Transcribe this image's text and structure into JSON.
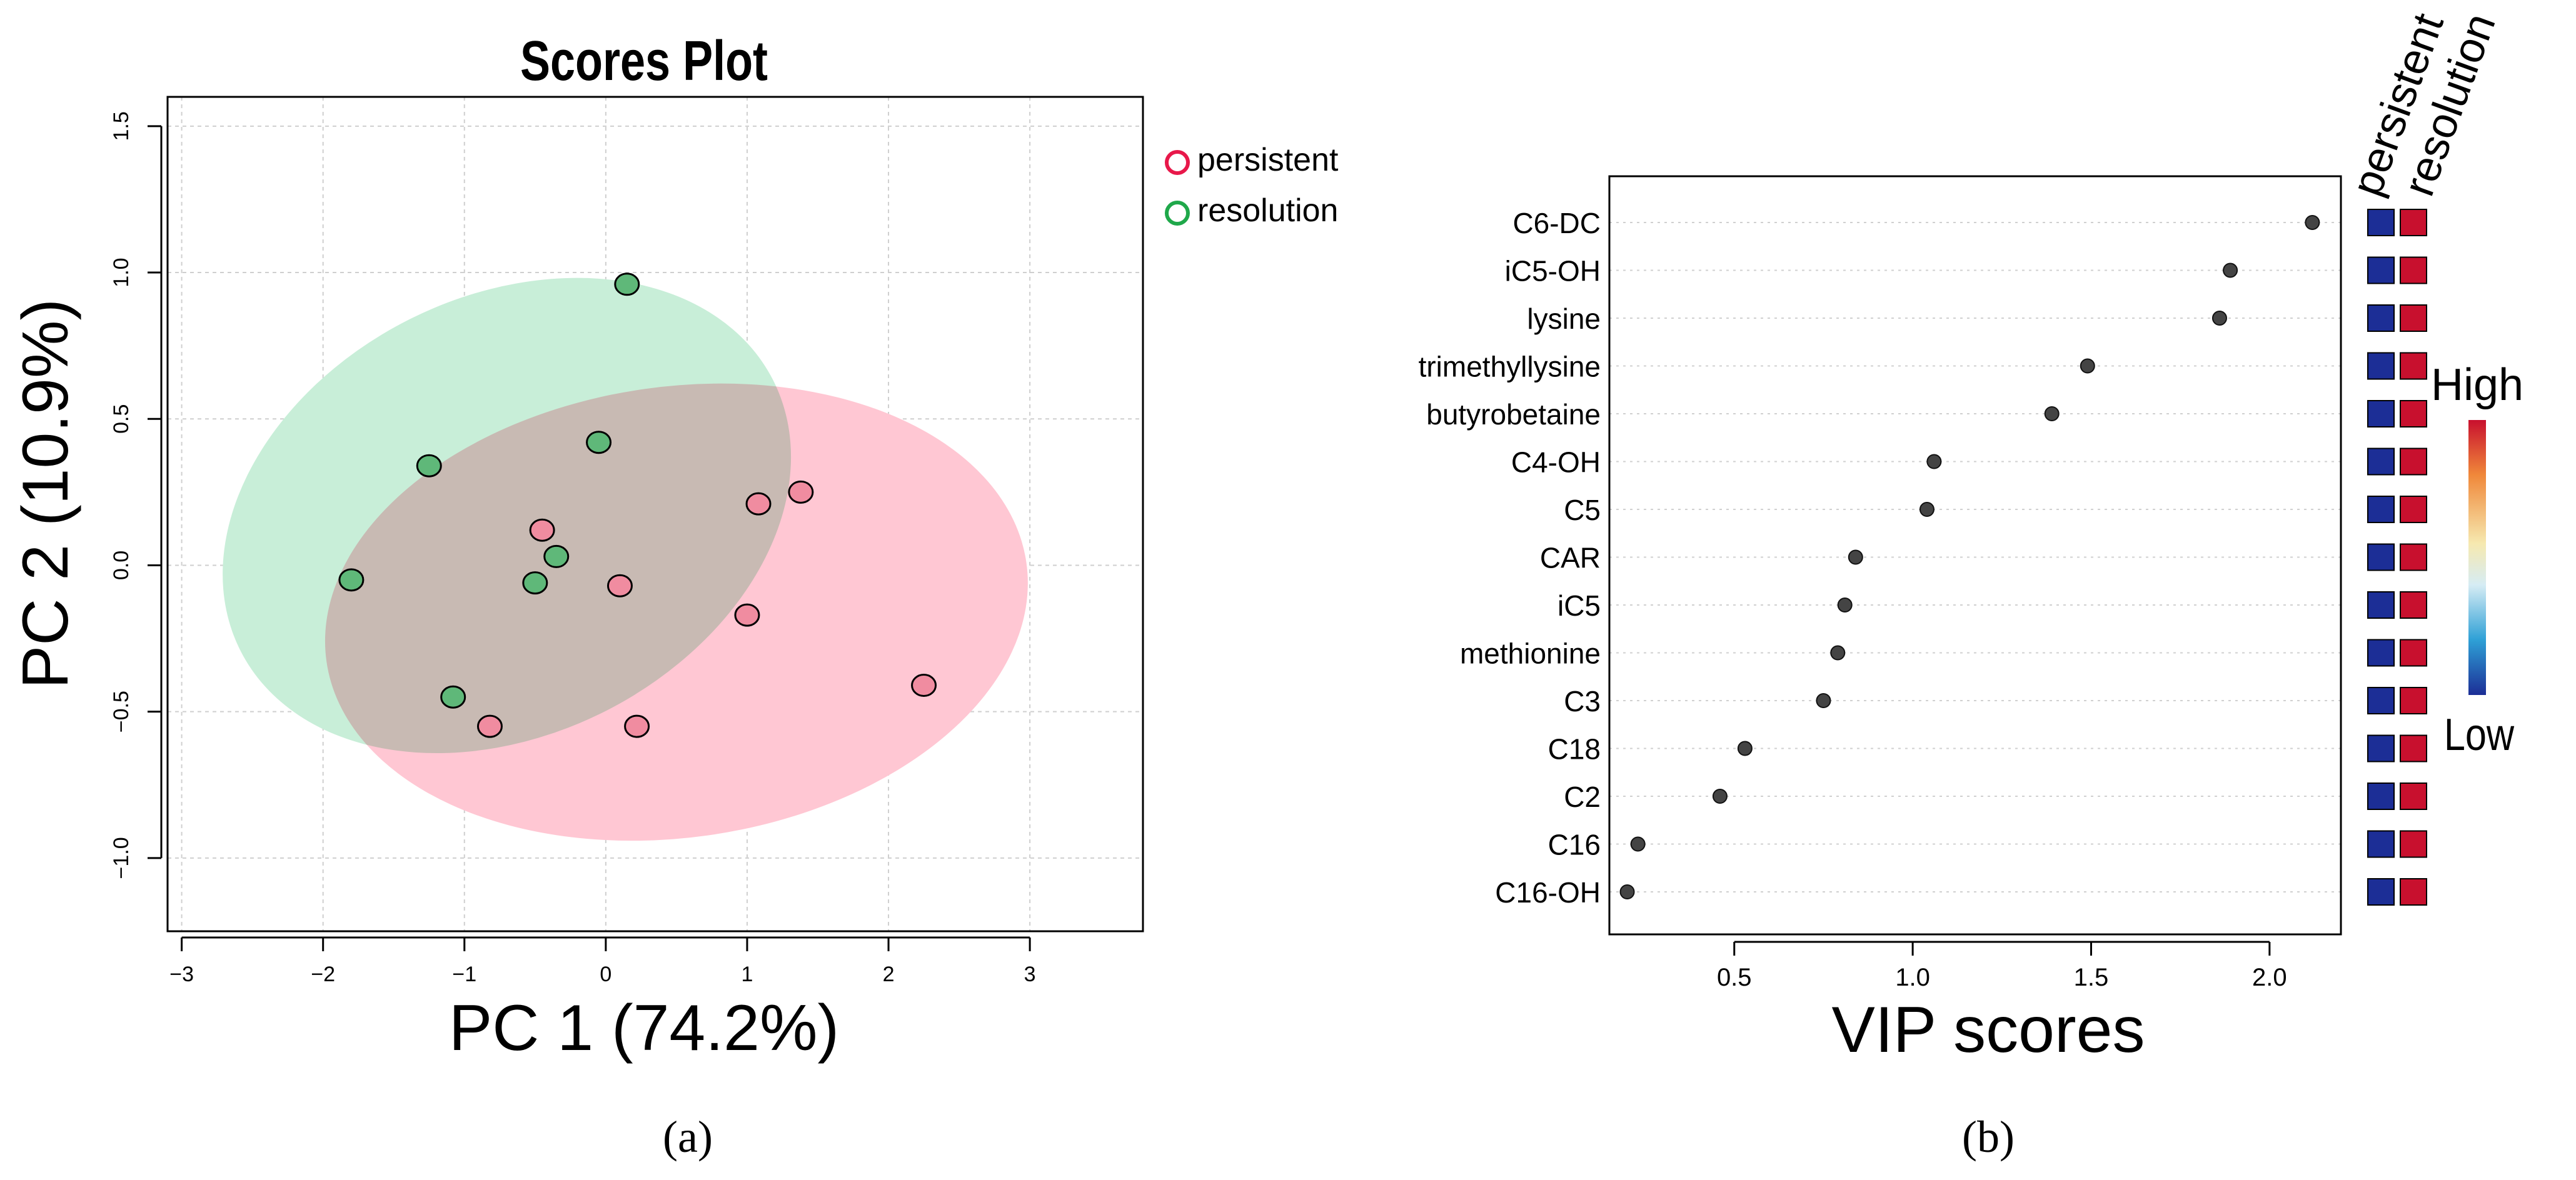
{
  "chart_data": [
    {
      "type": "scatter",
      "panel_label": "(a)",
      "title": "Scores Plot",
      "xlabel": "PC 1 (74.2%)",
      "ylabel": "PC 2 (10.9%)",
      "xlim": [
        -3.1,
        3.8
      ],
      "ylim": [
        -1.25,
        1.6
      ],
      "xticks": [
        -3,
        -2,
        -1,
        0,
        1,
        2,
        3
      ],
      "xtick_labels": [
        "−3",
        "−2",
        "−1",
        "0",
        "1",
        "2",
        "3"
      ],
      "yticks": [
        -1.0,
        -0.5,
        0.0,
        0.5,
        1.0,
        1.5
      ],
      "ytick_labels": [
        "−1.0",
        "−0.5",
        "0.0",
        "0.5",
        "1.0",
        "1.5"
      ],
      "grid": true,
      "legend_position": "right-outside-top",
      "series": [
        {
          "name": "persistent",
          "color": "#e8184a",
          "fill": "#f08ca0",
          "ellipse": {
            "cx": 0.5,
            "cy": -0.16,
            "rx": 2.5,
            "ry": 0.77,
            "angle_deg": -8,
            "color": "#ffc7d3"
          },
          "points": [
            {
              "x": -0.45,
              "y": 0.12
            },
            {
              "x": 0.1,
              "y": -0.07
            },
            {
              "x": 1.08,
              "y": 0.21
            },
            {
              "x": 1.38,
              "y": 0.25
            },
            {
              "x": 1.0,
              "y": -0.17
            },
            {
              "x": 2.25,
              "y": -0.41
            },
            {
              "x": -0.82,
              "y": -0.55
            },
            {
              "x": 0.22,
              "y": -0.55
            }
          ]
        },
        {
          "name": "resolution",
          "color": "#1fa84a",
          "fill": "#5fb879",
          "ellipse": {
            "cx": -0.7,
            "cy": 0.17,
            "rx": 1.55,
            "ry": 1.02,
            "angle_deg": 63,
            "color": "#c8eed8"
          },
          "points": [
            {
              "x": 0.15,
              "y": 0.96
            },
            {
              "x": -0.05,
              "y": 0.42
            },
            {
              "x": -1.25,
              "y": 0.34
            },
            {
              "x": -0.35,
              "y": 0.03
            },
            {
              "x": -0.5,
              "y": -0.06
            },
            {
              "x": -1.8,
              "y": -0.05
            },
            {
              "x": -1.08,
              "y": -0.45
            }
          ]
        }
      ]
    },
    {
      "type": "scatter",
      "panel_label": "(b)",
      "xlabel": "VIP scores",
      "ylabel": "",
      "xlim": [
        0.15,
        2.2
      ],
      "xticks": [
        0.5,
        1.0,
        1.5,
        2.0
      ],
      "xtick_labels": [
        "0.5",
        "1.0",
        "1.5",
        "2.0"
      ],
      "categories": [
        "C6-DC",
        "iC5-OH",
        "lysine",
        "trimethyllysine",
        "butyrobetaine",
        "C4-OH",
        "C5",
        "CAR",
        "iC5",
        "methionine",
        "C3",
        "C18",
        "C2",
        "C16",
        "C16-OH"
      ],
      "values": [
        2.12,
        1.89,
        1.86,
        1.49,
        1.39,
        1.06,
        1.04,
        0.84,
        0.81,
        0.79,
        0.75,
        0.53,
        0.46,
        0.23,
        0.2
      ],
      "point_color": "#444444",
      "heatmap_columns": [
        "persistent",
        "resolution"
      ],
      "heatmap_colors": {
        "persistent": "#2e3ca0",
        "resolution": "#c8102e"
      },
      "heatmap_cells": [
        [
          "Low",
          "High"
        ],
        [
          "Low",
          "High"
        ],
        [
          "Low",
          "High"
        ],
        [
          "Low",
          "High"
        ],
        [
          "Low",
          "High"
        ],
        [
          "Low",
          "High"
        ],
        [
          "Low",
          "High"
        ],
        [
          "Low",
          "High"
        ],
        [
          "Low",
          "High"
        ],
        [
          "Low",
          "High"
        ],
        [
          "Low",
          "High"
        ],
        [
          "Low",
          "High"
        ],
        [
          "Low",
          "High"
        ],
        [
          "Low",
          "High"
        ],
        [
          "Low",
          "High"
        ]
      ],
      "colorbar": {
        "high_label": "High",
        "low_label": "Low",
        "colors": [
          "#c8102e",
          "#f0883a",
          "#f6e9b0",
          "#d6ecf4",
          "#2ea0d6",
          "#1c2e96"
        ]
      }
    }
  ]
}
